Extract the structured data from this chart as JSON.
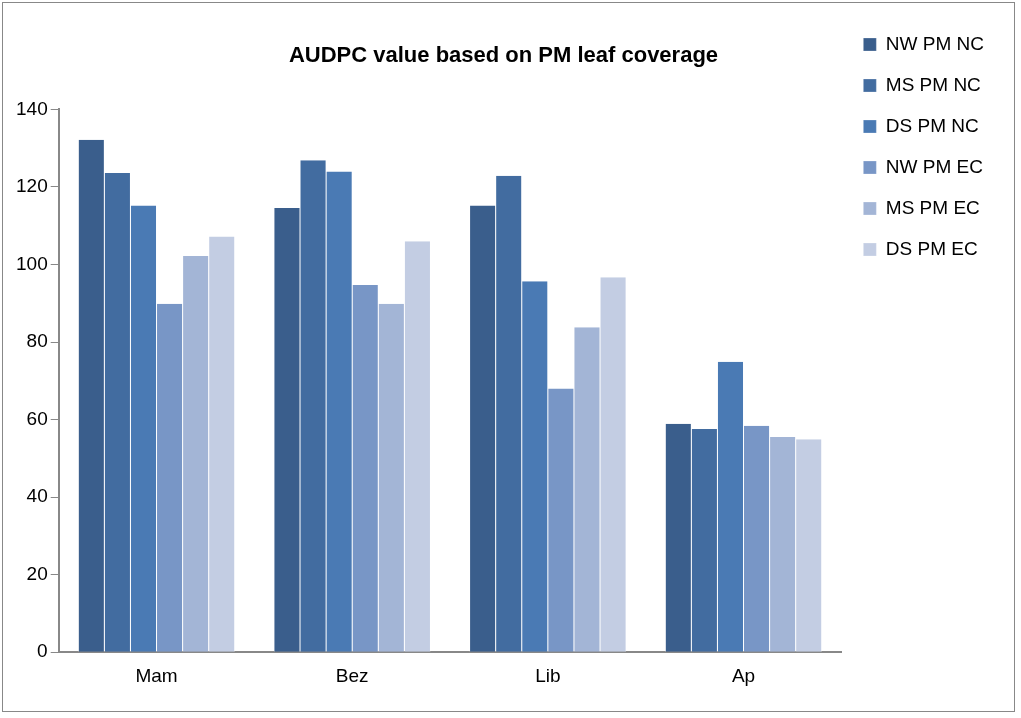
{
  "chart_data": {
    "type": "bar",
    "title": "AUDPC value based on PM leaf coverage",
    "categories": [
      "Mam",
      "Bez",
      "Lib",
      "Ap"
    ],
    "series": [
      {
        "name": "NW PM NC",
        "color": "#3a5e8c",
        "values": [
          132.2,
          114.6,
          115.2,
          58.9
        ]
      },
      {
        "name": "MS PM NC",
        "color": "#426ca0",
        "values": [
          123.6,
          126.9,
          122.9,
          57.6
        ]
      },
      {
        "name": "DS PM NC",
        "color": "#4a7ab4",
        "values": [
          115.2,
          124.0,
          95.7,
          74.9
        ]
      },
      {
        "name": "NW PM EC",
        "color": "#7896c6",
        "values": [
          89.9,
          94.7,
          68.0,
          58.4
        ]
      },
      {
        "name": "MS PM EC",
        "color": "#a3b5d6",
        "values": [
          102.2,
          89.9,
          83.8,
          55.5
        ]
      },
      {
        "name": "DS PM EC",
        "color": "#c3cde3",
        "values": [
          107.2,
          106.0,
          96.7,
          54.9
        ]
      }
    ],
    "ylim": [
      0,
      140
    ],
    "yticks": [
      0,
      20,
      40,
      60,
      80,
      100,
      120,
      140
    ],
    "grid": false,
    "legend": "top right"
  }
}
